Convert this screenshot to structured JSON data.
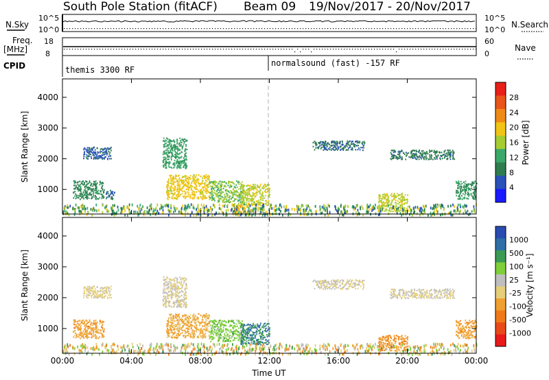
{
  "header": {
    "station": "South Pole Station (fitACF)",
    "beam": "Beam 09",
    "dates": "19/Nov/2017 - 20/Nov/2017"
  },
  "ops_panel": {
    "nsky_label": "N.Sky",
    "nsky_ticks": [
      "10^5",
      "10^0"
    ],
    "nsearch_label": "N.Search",
    "freq_label": "Freq.",
    "freq_unit": "[MHz]",
    "freq_ticks": [
      "18",
      "8"
    ],
    "nave_label": "Nave",
    "nave_ticks": [
      "60",
      "0"
    ],
    "cpid_label": "CPID",
    "cpid_segments": [
      "themis 3300 RF",
      "normalsound (fast) -157 RF"
    ]
  },
  "colors": {
    "power_scale": [
      "#1a1aff",
      "#2a52b8",
      "#2f7d4f",
      "#3ba86a",
      "#a6cc33",
      "#f2c417",
      "#f08a17",
      "#e8541a",
      "#e8201a"
    ],
    "velocity_scale": [
      "#2a4cb0",
      "#2f6fa8",
      "#3a9a56",
      "#7ecf3a",
      "#bfbfbf",
      "#e6cf7a",
      "#f0a030",
      "#f07a1a",
      "#e84a1a",
      "#e81a1a"
    ]
  },
  "chart_data": [
    {
      "type": "heatmap",
      "name": "power",
      "xlabel": "",
      "ylabel": "Slant Range [km]",
      "xticks": [
        "00:00",
        "04:00",
        "08:00",
        "12:00",
        "16:00",
        "20:00",
        "00:00"
      ],
      "xlim_hours": [
        0,
        24
      ],
      "ylim": [
        200,
        4600
      ],
      "yticks": [
        1000,
        2000,
        3000,
        4000
      ],
      "colorbar": {
        "label": "Power [dB]",
        "ticks": [
          "28",
          "24",
          "20",
          "16",
          "12",
          "8",
          "4"
        ],
        "range": [
          0,
          30
        ]
      },
      "regions": [
        {
          "t": [
            0.6,
            2.4
          ],
          "r": [
            700,
            1300
          ],
          "v": 9
        },
        {
          "t": [
            1.2,
            2.8
          ],
          "r": [
            2000,
            2400
          ],
          "v": 6
        },
        {
          "t": [
            2.5,
            3.0
          ],
          "r": [
            700,
            1000
          ],
          "v": 7
        },
        {
          "t": [
            5.8,
            7.2
          ],
          "r": [
            1700,
            2700
          ],
          "v": 11
        },
        {
          "t": [
            6.0,
            8.5
          ],
          "r": [
            700,
            1500
          ],
          "v": 18
        },
        {
          "t": [
            8.5,
            10.5
          ],
          "r": [
            600,
            1300
          ],
          "v": 14
        },
        {
          "t": [
            10.3,
            12.0
          ],
          "r": [
            500,
            1200
          ],
          "v": 16
        },
        {
          "t": [
            9.8,
            11.5
          ],
          "r": [
            200,
            600
          ],
          "v": 17
        },
        {
          "t": [
            14.5,
            17.5
          ],
          "r": [
            2300,
            2600
          ],
          "v": 7
        },
        {
          "t": [
            19.0,
            22.7
          ],
          "r": [
            2000,
            2300
          ],
          "v": 8
        },
        {
          "t": [
            18.3,
            20.0
          ],
          "r": [
            300,
            900
          ],
          "v": 16
        },
        {
          "t": [
            22.8,
            24.0
          ],
          "r": [
            700,
            1300
          ],
          "v": 10
        },
        {
          "t": [
            0.0,
            24.0
          ],
          "r": [
            200,
            550
          ],
          "v": 12
        }
      ]
    },
    {
      "type": "heatmap",
      "name": "velocity",
      "xlabel": "Time UT",
      "ylabel": "Slant Range [km]",
      "xticks": [
        "00:00",
        "04:00",
        "08:00",
        "12:00",
        "16:00",
        "20:00",
        "00:00"
      ],
      "xlim_hours": [
        0,
        24
      ],
      "ylim": [
        200,
        4600
      ],
      "yticks": [
        1000,
        2000,
        3000,
        4000
      ],
      "colorbar": {
        "label": "Velocity [m s⁻¹]",
        "ticks": [
          "1000",
          "500",
          "100",
          "25",
          "-25",
          "-100",
          "-500",
          "-1000"
        ],
        "range": [
          -1000,
          1000
        ]
      },
      "regions": [
        {
          "t": [
            0.6,
            2.4
          ],
          "r": [
            700,
            1300
          ],
          "v": -300
        },
        {
          "t": [
            1.2,
            2.8
          ],
          "r": [
            2000,
            2400
          ],
          "v": -60
        },
        {
          "t": [
            5.8,
            7.2
          ],
          "r": [
            1700,
            2700
          ],
          "v": 0
        },
        {
          "t": [
            6.0,
            8.5
          ],
          "r": [
            700,
            1500
          ],
          "v": -250
        },
        {
          "t": [
            8.5,
            10.5
          ],
          "r": [
            600,
            1300
          ],
          "v": 300
        },
        {
          "t": [
            10.3,
            12.0
          ],
          "r": [
            500,
            1200
          ],
          "v": 600
        },
        {
          "t": [
            14.5,
            17.5
          ],
          "r": [
            2300,
            2600
          ],
          "v": 0
        },
        {
          "t": [
            19.0,
            22.7
          ],
          "r": [
            2000,
            2300
          ],
          "v": 0
        },
        {
          "t": [
            18.3,
            20.0
          ],
          "r": [
            300,
            800
          ],
          "v": -350
        },
        {
          "t": [
            22.8,
            24.0
          ],
          "r": [
            700,
            1300
          ],
          "v": -300
        },
        {
          "t": [
            0.0,
            24.0
          ],
          "r": [
            200,
            550
          ],
          "v": 0
        }
      ]
    }
  ]
}
